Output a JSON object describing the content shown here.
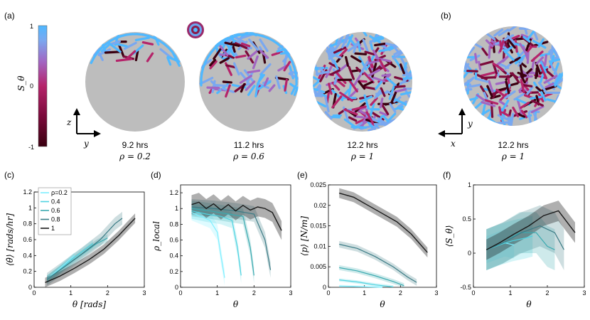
{
  "panel_labels": [
    "(a)",
    "(b)",
    "(c)",
    "(d)",
    "(e)",
    "(f)"
  ],
  "colors": {
    "cmap": [
      "#3a0010",
      "#7a0a3a",
      "#b5246a",
      "#a266c2",
      "#7aa8f0",
      "#4fb8ff"
    ],
    "disk": "#bdbdbd",
    "series": [
      "#7fefff",
      "#4fd3e0",
      "#3aaab0",
      "#3b7b85",
      "#1a1a1a"
    ]
  },
  "colorbar": {
    "label": "S_θ",
    "ticks": [
      "1",
      "0",
      "-1"
    ]
  },
  "snapshots": [
    {
      "time": "9.2 hrs",
      "rho": "ρ = 0.2",
      "fill": 0.3
    },
    {
      "time": "11.2 hrs",
      "rho": "ρ = 0.6",
      "fill": 0.6
    },
    {
      "time": "12.2 hrs",
      "rho": "ρ = 1",
      "fill": 1.0
    },
    {
      "time": "12.2 hrs",
      "rho": "ρ = 1",
      "fill": 1.0
    }
  ],
  "axes_glyphs": {
    "a_vertical": "z",
    "a_horizontal": "y",
    "b_vertical": "y",
    "b_horizontal": "x"
  },
  "chart_data": [
    {
      "panel": "(c)",
      "type": "line",
      "xlabel": "θ [rads]",
      "ylabel": "⟨θ̇⟩ [rads/hr]",
      "xlim": [
        0,
        3
      ],
      "ylim": [
        0,
        1.2
      ],
      "xticks": [
        "0",
        "1",
        "2",
        "3"
      ],
      "yticks": [
        "0",
        "0.2",
        "0.4",
        "0.6",
        "0.8",
        "1",
        "1.2"
      ],
      "legend": {
        "placement": "top-left",
        "entries": [
          "ρ=0.2",
          "0.4",
          "0.6",
          "0.8",
          "1"
        ]
      },
      "series": [
        {
          "name": "ρ=0.2",
          "x": [
            0.35,
            0.6,
            0.85,
            1.1
          ],
          "y": [
            0.1,
            0.2,
            0.3,
            0.4
          ],
          "band": 0.04
        },
        {
          "name": "0.4",
          "x": [
            0.35,
            0.7,
            1.05,
            1.4,
            1.6
          ],
          "y": [
            0.1,
            0.22,
            0.36,
            0.48,
            0.55
          ],
          "band": 0.05
        },
        {
          "name": "0.6",
          "x": [
            0.35,
            0.8,
            1.25,
            1.7,
            2.0
          ],
          "y": [
            0.1,
            0.25,
            0.4,
            0.55,
            0.62
          ],
          "band": 0.05
        },
        {
          "name": "0.8",
          "x": [
            0.35,
            0.8,
            1.3,
            1.8,
            2.2,
            2.4
          ],
          "y": [
            0.1,
            0.25,
            0.42,
            0.6,
            0.8,
            0.87
          ],
          "band": 0.08
        },
        {
          "name": "1",
          "x": [
            0.3,
            0.7,
            1.1,
            1.5,
            1.9,
            2.3,
            2.75
          ],
          "y": [
            0.06,
            0.14,
            0.24,
            0.35,
            0.48,
            0.65,
            0.87
          ],
          "band": 0.06
        }
      ]
    },
    {
      "panel": "(d)",
      "type": "line",
      "xlabel": "θ",
      "ylabel": "ρ_local",
      "xlim": [
        0,
        3
      ],
      "ylim": [
        0,
        1.3
      ],
      "xticks": [
        "0",
        "1",
        "2",
        "3"
      ],
      "yticks": [
        "0",
        "0.2",
        "0.4",
        "0.6",
        "0.8",
        "1",
        "1.2"
      ],
      "series": [
        {
          "name": "ρ=0.2",
          "x": [
            0.3,
            0.55,
            0.8,
            1.0,
            1.1,
            1.2
          ],
          "y": [
            0.95,
            0.9,
            0.85,
            0.7,
            0.4,
            0.12
          ],
          "band": 0.1
        },
        {
          "name": "0.4",
          "x": [
            0.3,
            0.7,
            1.1,
            1.4,
            1.55,
            1.65
          ],
          "y": [
            0.97,
            0.93,
            0.9,
            0.85,
            0.5,
            0.15
          ],
          "band": 0.1
        },
        {
          "name": "0.6",
          "x": [
            0.3,
            0.8,
            1.3,
            1.7,
            1.9,
            2.0
          ],
          "y": [
            1.0,
            0.97,
            0.93,
            0.9,
            0.5,
            0.15
          ],
          "band": 0.1
        },
        {
          "name": "0.8",
          "x": [
            0.3,
            0.9,
            1.5,
            2.0,
            2.3,
            2.45
          ],
          "y": [
            1.02,
            1.0,
            0.97,
            0.93,
            0.6,
            0.22
          ],
          "band": 0.1
        },
        {
          "name": "1",
          "x": [
            0.3,
            0.5,
            0.7,
            0.9,
            1.1,
            1.3,
            1.5,
            1.7,
            1.9,
            2.1,
            2.3,
            2.5,
            2.75
          ],
          "y": [
            1.05,
            1.08,
            1.0,
            1.06,
            0.98,
            1.05,
            0.97,
            1.04,
            0.98,
            1.02,
            1.0,
            0.95,
            0.72
          ],
          "band": 0.12
        }
      ]
    },
    {
      "panel": "(e)",
      "type": "line",
      "xlabel": "θ",
      "ylabel": "⟨p⟩ [N/m]",
      "xlim": [
        0,
        3
      ],
      "ylim": [
        0,
        0.025
      ],
      "xticks": [
        "0",
        "1",
        "2",
        "3"
      ],
      "yticks": [
        "0",
        "0.005",
        "0.01",
        "0.015",
        "0.02",
        "0.025"
      ],
      "series": [
        {
          "name": "ρ=0.2",
          "x": [
            0.3,
            0.7,
            1.1,
            1.5
          ],
          "y": [
            0.0003,
            0.0002,
            0.0001,
            0.0
          ],
          "band": 0.0003
        },
        {
          "name": "0.4",
          "x": [
            0.3,
            0.8,
            1.3,
            1.8
          ],
          "y": [
            0.0018,
            0.0013,
            0.0006,
            0.0001
          ],
          "band": 0.0004
        },
        {
          "name": "0.6",
          "x": [
            0.3,
            0.8,
            1.3,
            1.8,
            2.1
          ],
          "y": [
            0.0048,
            0.004,
            0.0028,
            0.0014,
            0.0004
          ],
          "band": 0.0006
        },
        {
          "name": "0.8",
          "x": [
            0.3,
            0.8,
            1.3,
            1.8,
            2.2,
            2.45
          ],
          "y": [
            0.0105,
            0.0095,
            0.0075,
            0.005,
            0.0025,
            0.0012
          ],
          "band": 0.0008
        },
        {
          "name": "1",
          "x": [
            0.3,
            0.7,
            1.1,
            1.5,
            1.9,
            2.3,
            2.75
          ],
          "y": [
            0.023,
            0.022,
            0.02,
            0.018,
            0.016,
            0.013,
            0.0085
          ],
          "band": 0.0012
        }
      ]
    },
    {
      "panel": "(f)",
      "type": "line",
      "xlabel": "θ",
      "ylabel": "⟨S_θ⟩",
      "xlim": [
        0,
        3
      ],
      "ylim": [
        -0.5,
        1
      ],
      "xticks": [
        "0",
        "1",
        "2",
        "3"
      ],
      "yticks": [
        "-0.5",
        "0",
        "0.5",
        "1"
      ],
      "series": [
        {
          "name": "ρ=0.2",
          "x": [
            0.35,
            0.6,
            0.85,
            1.1
          ],
          "y": [
            0.05,
            0.1,
            0.15,
            0.12
          ],
          "band": 0.2
        },
        {
          "name": "0.4",
          "x": [
            0.35,
            0.7,
            1.05,
            1.4,
            1.6
          ],
          "y": [
            0.05,
            0.12,
            0.18,
            0.22,
            0.25
          ],
          "band": 0.3
        },
        {
          "name": "0.6",
          "x": [
            0.35,
            0.8,
            1.25,
            1.7,
            2.0,
            2.2
          ],
          "y": [
            0.05,
            0.15,
            0.3,
            0.3,
            0.1,
            0.05
          ],
          "band": 0.3
        },
        {
          "name": "0.8",
          "x": [
            0.35,
            0.8,
            1.3,
            1.8,
            2.2,
            2.45
          ],
          "y": [
            0.05,
            0.15,
            0.3,
            0.4,
            0.3,
            0.05
          ],
          "band": 0.3
        },
        {
          "name": "1",
          "x": [
            0.35,
            0.7,
            1.1,
            1.5,
            1.9,
            2.3,
            2.75
          ],
          "y": [
            0.05,
            0.15,
            0.28,
            0.4,
            0.55,
            0.62,
            0.3
          ],
          "band": 0.15
        }
      ]
    }
  ]
}
